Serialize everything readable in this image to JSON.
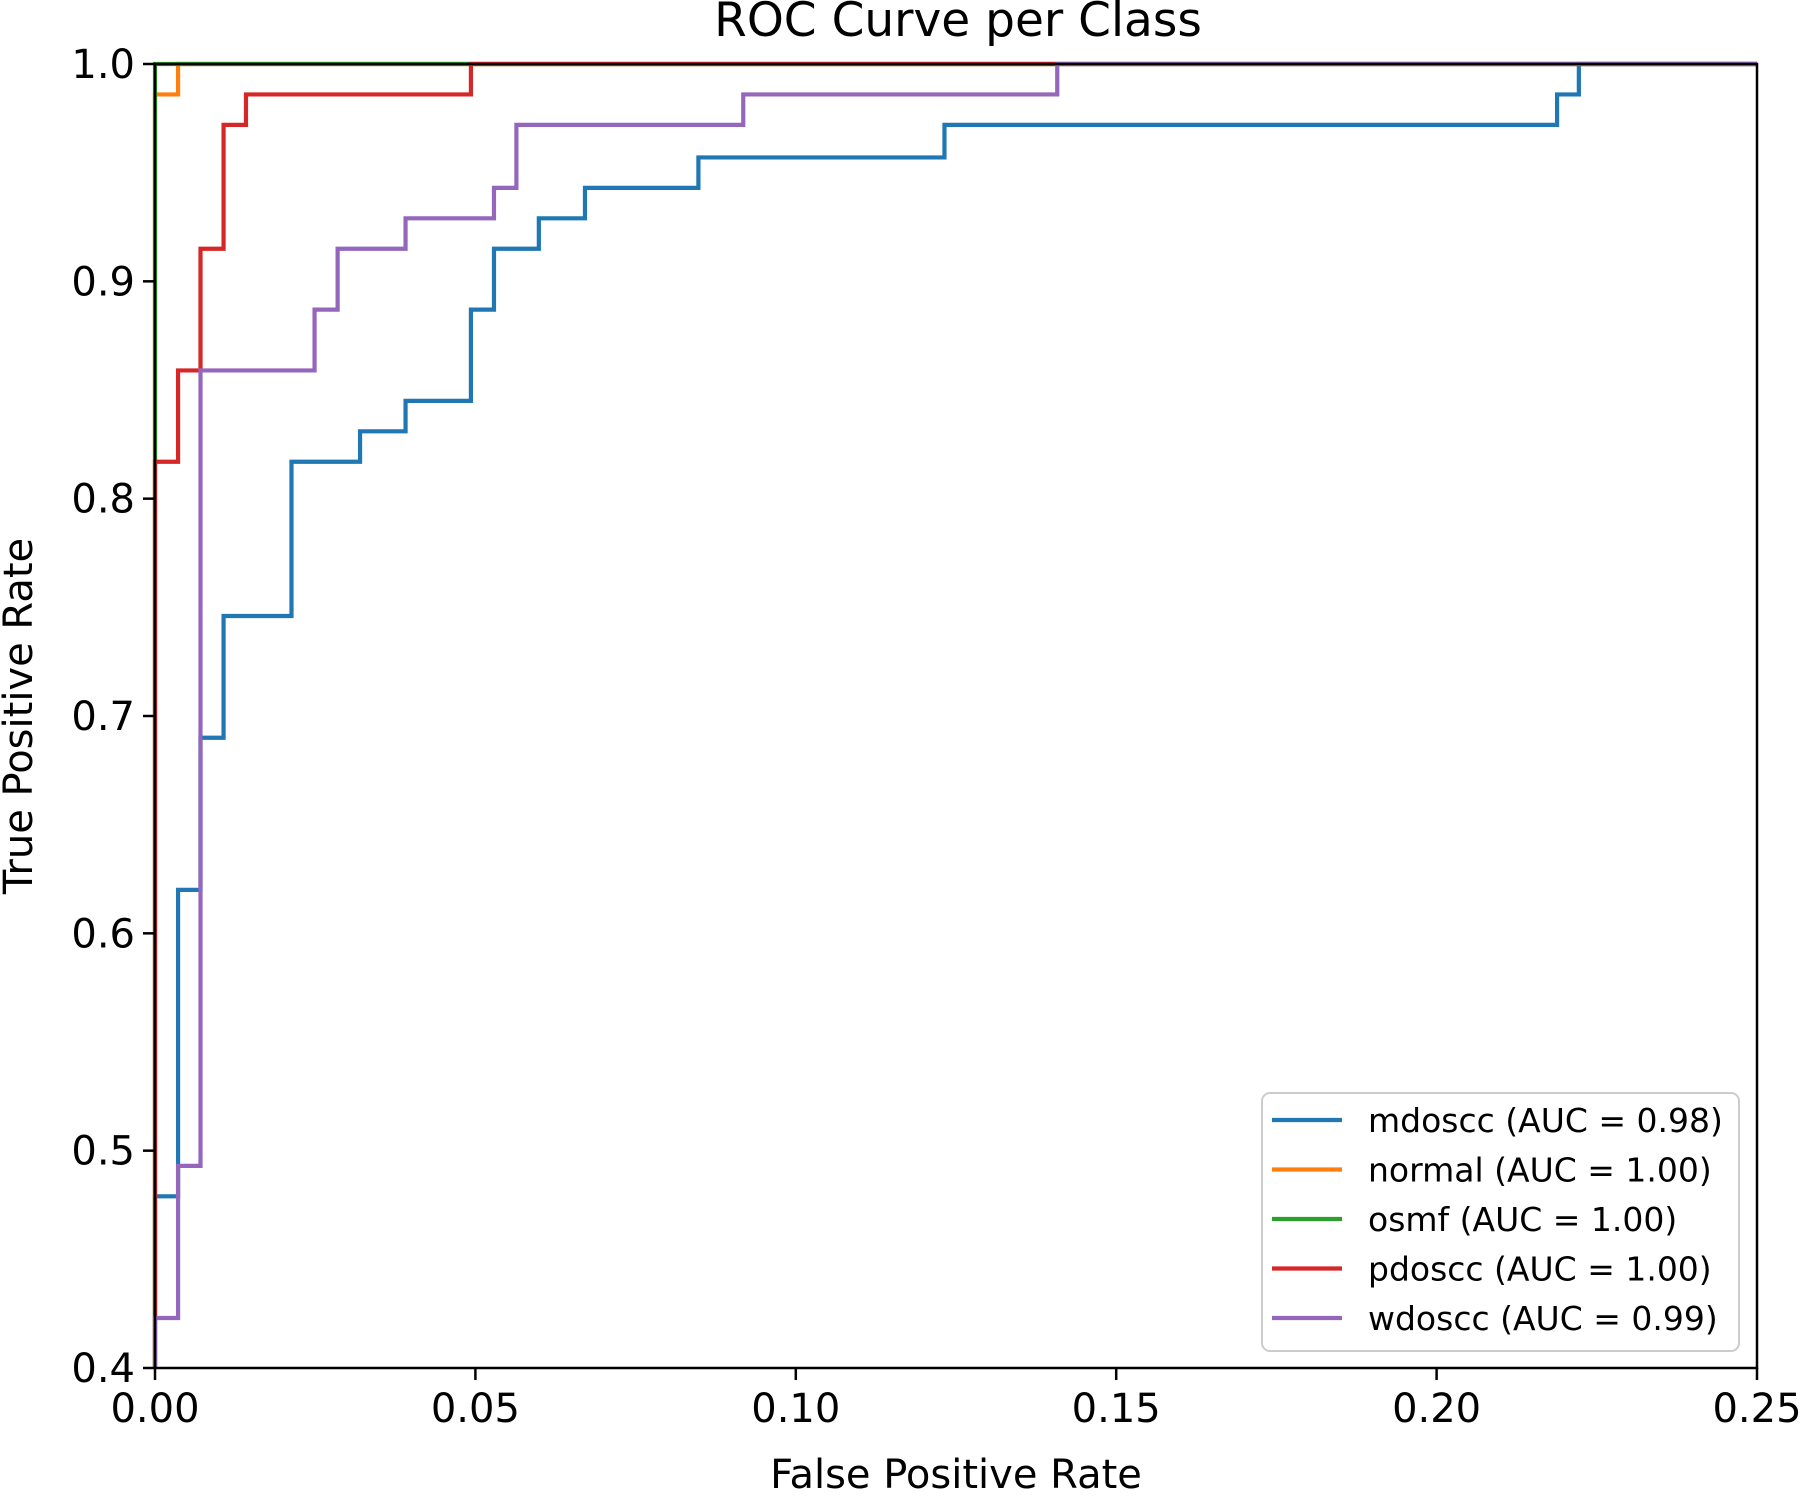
{
  "chart_data": {
    "type": "line",
    "title": "ROC Curve per Class",
    "xlabel": "False Positive Rate",
    "ylabel": "True Positive Rate",
    "xlim": [
      0.0,
      0.25
    ],
    "ylim": [
      0.4,
      1.0
    ],
    "xticks": [
      "0.00",
      "0.05",
      "0.10",
      "0.15",
      "0.20",
      "0.25"
    ],
    "yticks": [
      "0.4",
      "0.5",
      "0.6",
      "0.7",
      "0.8",
      "0.9",
      "1.0"
    ],
    "grid": false,
    "legend_position": "lower-right",
    "series": [
      {
        "name": "mdoscc (AUC = 0.98)",
        "color": "#1f77b4",
        "x": [
          0,
          0,
          0.0036,
          0.0036,
          0.0071,
          0.0071,
          0.0107,
          0.0107,
          0.0213,
          0.0213,
          0.032,
          0.032,
          0.0391,
          0.0391,
          0.0493,
          0.0493,
          0.0529,
          0.0529,
          0.0599,
          0.0599,
          0.0671,
          0.0671,
          0.0848,
          0.0848,
          0.1232,
          0.1232,
          0.2188,
          0.2188,
          0.2222,
          0.2222,
          0.25
        ],
        "y": [
          0.4,
          0.479,
          0.479,
          0.62,
          0.62,
          0.69,
          0.69,
          0.746,
          0.746,
          0.817,
          0.817,
          0.831,
          0.831,
          0.845,
          0.845,
          0.887,
          0.887,
          0.915,
          0.915,
          0.929,
          0.929,
          0.943,
          0.943,
          0.957,
          0.957,
          0.972,
          0.972,
          0.986,
          0.986,
          1.0,
          1.0
        ]
      },
      {
        "name": "normal (AUC = 1.00)",
        "color": "#ff7f0e",
        "x": [
          0,
          0,
          0.0036,
          0.0036,
          0.25
        ],
        "y": [
          0.4,
          0.986,
          0.986,
          1.0,
          1.0
        ]
      },
      {
        "name": "osmf (AUC = 1.00)",
        "color": "#2ca02c",
        "x": [
          0,
          0,
          0.25
        ],
        "y": [
          0.4,
          1.0,
          1.0
        ]
      },
      {
        "name": "pdoscc (AUC = 1.00)",
        "color": "#d62728",
        "x": [
          0,
          0,
          0.0036,
          0.0036,
          0.0071,
          0.0071,
          0.0107,
          0.0107,
          0.0142,
          0.0142,
          0.0493,
          0.0493,
          0.25
        ],
        "y": [
          0.4,
          0.817,
          0.817,
          0.859,
          0.859,
          0.915,
          0.915,
          0.972,
          0.972,
          0.986,
          0.986,
          1.0,
          1.0
        ]
      },
      {
        "name": "wdoscc (AUC = 0.99)",
        "color": "#9467bd",
        "x": [
          0,
          0,
          0.0036,
          0.0036,
          0.0071,
          0.0071,
          0.0249,
          0.0249,
          0.0285,
          0.0285,
          0.0391,
          0.0391,
          0.0529,
          0.0529,
          0.0564,
          0.0564,
          0.0918,
          0.0918,
          0.1408,
          0.1408,
          0.25
        ],
        "y": [
          0.4,
          0.423,
          0.423,
          0.493,
          0.493,
          0.859,
          0.859,
          0.887,
          0.887,
          0.915,
          0.915,
          0.929,
          0.929,
          0.943,
          0.943,
          0.972,
          0.972,
          0.986,
          0.986,
          1.0,
          1.0
        ]
      }
    ]
  }
}
